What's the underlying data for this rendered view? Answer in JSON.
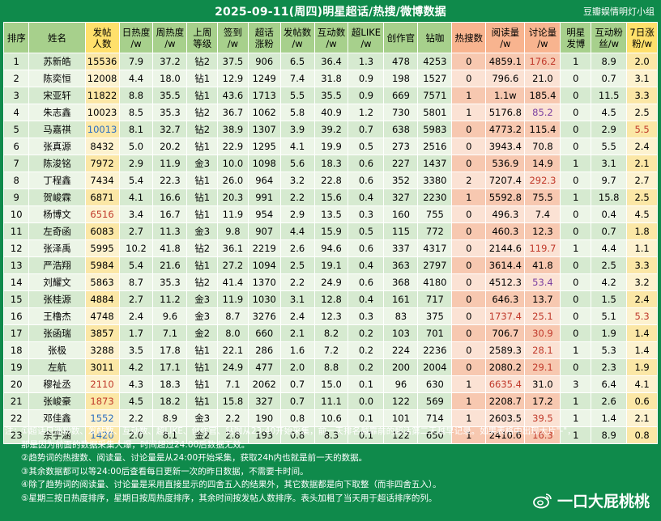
{
  "title": "2025-09-11(周四)明星超话/热搜/微博数据",
  "source": "豆瓣娱情明灯小组",
  "columns": [
    {
      "label1": "排序",
      "label2": "",
      "cls": "h-rank",
      "w": 30
    },
    {
      "label1": "姓名",
      "label2": "",
      "cls": "h-name",
      "w": 66
    },
    {
      "label1": "发帖",
      "label2": "人数",
      "cls": "h-gold",
      "w": 40
    },
    {
      "label1": "日热度",
      "label2": "/w",
      "cls": "h-green",
      "w": 40
    },
    {
      "label1": "周热度",
      "label2": "/w",
      "cls": "h-green",
      "w": 40
    },
    {
      "label1": "上周",
      "label2": "等级",
      "cls": "h-green",
      "w": 36
    },
    {
      "label1": "签到",
      "label2": "/w",
      "cls": "h-green",
      "w": 36
    },
    {
      "label1": "超话",
      "label2": "涨粉",
      "cls": "h-green",
      "w": 38
    },
    {
      "label1": "发帖数",
      "label2": "/w",
      "cls": "h-green",
      "w": 40
    },
    {
      "label1": "互动数",
      "label2": "/w",
      "cls": "h-green",
      "w": 40
    },
    {
      "label1": "超LIKE",
      "label2": "/w",
      "cls": "h-green",
      "w": 42
    },
    {
      "label1": "创作官",
      "label2": "",
      "cls": "h-green",
      "w": 40
    },
    {
      "label1": "钻咖",
      "label2": "",
      "cls": "h-green",
      "w": 40
    },
    {
      "label1": "热搜数",
      "label2": "",
      "cls": "h-peach",
      "w": 40
    },
    {
      "label1": "阅读量",
      "label2": "/w",
      "cls": "h-peach",
      "w": 46
    },
    {
      "label1": "讨论量",
      "label2": "/w",
      "cls": "h-peach",
      "w": 42
    },
    {
      "label1": "明星",
      "label2": "发博",
      "cls": "h-green",
      "w": 36
    },
    {
      "label1": "互动粉",
      "label2": "丝/w",
      "cls": "h-green",
      "w": 42
    },
    {
      "label1": "7日涨",
      "label2": "粉/w",
      "cls": "h-gold2",
      "w": 36
    }
  ],
  "rows": [
    [
      "1",
      "苏新皓",
      "15536",
      "7.9",
      "37.2",
      "钻2",
      "37.5",
      "906",
      "6.5",
      "36.4",
      "1.3",
      "478",
      "4253",
      "0",
      "4859.1",
      "176.2",
      "1",
      "8.9",
      "2.0"
    ],
    [
      "2",
      "陈奕恒",
      "12008",
      "4.4",
      "18.0",
      "钻1",
      "12.9",
      "1249",
      "7.4",
      "31.8",
      "0.9",
      "198",
      "1527",
      "0",
      "796.6",
      "21.0",
      "0",
      "0.7",
      "3.1"
    ],
    [
      "3",
      "宋亚轩",
      "11822",
      "8.8",
      "35.5",
      "钻1",
      "43.6",
      "1713",
      "5.5",
      "35.5",
      "0.9",
      "669",
      "7571",
      "1",
      "1.1w",
      "185.4",
      "0",
      "11.5",
      "3.3"
    ],
    [
      "4",
      "朱志鑫",
      "10023",
      "8.5",
      "35.3",
      "钻2",
      "36.7",
      "1062",
      "5.8",
      "40.9",
      "1.2",
      "730",
      "5801",
      "1",
      "5176.8",
      "85.2",
      "0",
      "4.5",
      "2.5"
    ],
    [
      "5",
      "马嘉祺",
      "10013",
      "8.1",
      "32.7",
      "钻2",
      "38.9",
      "1307",
      "3.9",
      "39.2",
      "0.7",
      "638",
      "5983",
      "0",
      "4773.2",
      "115.4",
      "0",
      "2.9",
      "5.5"
    ],
    [
      "6",
      "张真源",
      "8432",
      "5.0",
      "20.2",
      "钻1",
      "22.9",
      "1295",
      "4.1",
      "19.9",
      "0.5",
      "273",
      "2516",
      "0",
      "3943.4",
      "70.8",
      "0",
      "5.5",
      "2.4"
    ],
    [
      "7",
      "陈浚铭",
      "7972",
      "2.9",
      "11.9",
      "金3",
      "10.0",
      "1098",
      "5.6",
      "18.3",
      "0.6",
      "227",
      "1437",
      "0",
      "536.9",
      "14.9",
      "1",
      "3.1",
      "2.1"
    ],
    [
      "8",
      "丁程鑫",
      "7434",
      "5.4",
      "22.3",
      "钻1",
      "26.0",
      "964",
      "3.2",
      "22.8",
      "0.6",
      "352",
      "3380",
      "2",
      "7207.4",
      "292.3",
      "0",
      "9.7",
      "2.7"
    ],
    [
      "9",
      "贺峻霖",
      "6871",
      "4.1",
      "16.6",
      "钻1",
      "20.3",
      "991",
      "2.2",
      "15.6",
      "0.4",
      "327",
      "2230",
      "1",
      "5592.8",
      "75.5",
      "1",
      "15.8",
      "2.5"
    ],
    [
      "10",
      "杨博文",
      "6516",
      "3.4",
      "16.7",
      "钻1",
      "11.9",
      "954",
      "2.9",
      "13.5",
      "0.3",
      "160",
      "755",
      "0",
      "496.3",
      "7.4",
      "0",
      "0.4",
      "4.5"
    ],
    [
      "11",
      "左奇函",
      "6083",
      "2.7",
      "11.3",
      "金3",
      "9.8",
      "907",
      "4.4",
      "15.9",
      "0.5",
      "115",
      "772",
      "0",
      "460.3",
      "12.3",
      "0",
      "0.7",
      "1.8"
    ],
    [
      "12",
      "张泽禹",
      "5995",
      "10.2",
      "41.8",
      "钻2",
      "36.1",
      "2219",
      "2.6",
      "94.6",
      "0.6",
      "337",
      "4317",
      "0",
      "2144.6",
      "119.7",
      "1",
      "4.4",
      "1.1"
    ],
    [
      "13",
      "严浩翔",
      "5984",
      "5.4",
      "21.6",
      "钻1",
      "27.2",
      "1094",
      "2.5",
      "19.1",
      "0.4",
      "363",
      "2797",
      "0",
      "3614.4",
      "41.8",
      "0",
      "2.5",
      "3.3"
    ],
    [
      "14",
      "刘耀文",
      "5863",
      "8.7",
      "35.3",
      "钻2",
      "41.4",
      "1370",
      "2.2",
      "24.9",
      "0.6",
      "368",
      "4180",
      "0",
      "4512.3",
      "53.4",
      "0",
      "4.2",
      "3.2"
    ],
    [
      "15",
      "张桂源",
      "4884",
      "2.7",
      "11.2",
      "金3",
      "11.9",
      "1030",
      "3.1",
      "12.8",
      "0.4",
      "161",
      "717",
      "0",
      "646.3",
      "13.7",
      "0",
      "1.5",
      "2.4"
    ],
    [
      "16",
      "王橹杰",
      "4748",
      "2.4",
      "9.6",
      "金3",
      "8.7",
      "3276",
      "2.4",
      "12.3",
      "0.3",
      "83",
      "375",
      "0",
      "1737.4",
      "25.1",
      "0",
      "5.1",
      "5.3"
    ],
    [
      "17",
      "张函瑞",
      "3857",
      "1.7",
      "7.1",
      "金2",
      "8.0",
      "660",
      "2.1",
      "8.2",
      "0.2",
      "103",
      "701",
      "0",
      "706.7",
      "30.9",
      "0",
      "1.9",
      "1.4"
    ],
    [
      "18",
      "张极",
      "3288",
      "3.5",
      "17.8",
      "钻1",
      "22.1",
      "286",
      "1.6",
      "7.2",
      "0.2",
      "224",
      "2236",
      "0",
      "2589.3",
      "28.1",
      "1",
      "5.3",
      "1.4"
    ],
    [
      "19",
      "左航",
      "3011",
      "4.2",
      "17.1",
      "钻1",
      "24.9",
      "477",
      "2.0",
      "8.8",
      "0.2",
      "200",
      "2004",
      "0",
      "2080.2",
      "29.1",
      "0",
      "2.3",
      "1.9"
    ],
    [
      "20",
      "穆祉丞",
      "2110",
      "4.3",
      "18.3",
      "钻1",
      "7.1",
      "2062",
      "0.7",
      "15.0",
      "0.1",
      "96",
      "630",
      "1",
      "6635.4",
      "31.0",
      "3",
      "6.4",
      "4.1"
    ],
    [
      "21",
      "张峻豪",
      "1873",
      "4.5",
      "18.2",
      "钻1",
      "15.8",
      "327",
      "0.7",
      "11.1",
      "0.0",
      "122",
      "569",
      "1",
      "2208.7",
      "17.2",
      "1",
      "2.6",
      "0.6"
    ],
    [
      "22",
      "邓佳鑫",
      "1552",
      "2.2",
      "8.9",
      "金3",
      "2.2",
      "190",
      "0.8",
      "10.6",
      "0.1",
      "101",
      "714",
      "1",
      "2603.5",
      "39.5",
      "1",
      "1.4",
      "2.1"
    ],
    [
      "23",
      "余宇涵",
      "1420",
      "2.0",
      "8.1",
      "金2",
      "2.8",
      "193",
      "0.8",
      "8.3",
      "0.1",
      "122",
      "650",
      "1",
      "2410.6",
      "16.3",
      "1",
      "8.9",
      "0.8"
    ]
  ],
  "cell_colors": {
    "blue": [
      [
        4,
        2
      ],
      [
        21,
        2
      ],
      [
        22,
        2
      ]
    ],
    "red": [
      [
        9,
        2
      ],
      [
        19,
        2
      ],
      [
        20,
        2
      ],
      [
        0,
        15
      ],
      [
        7,
        15
      ],
      [
        11,
        15
      ],
      [
        15,
        14
      ],
      [
        15,
        15
      ],
      [
        16,
        15
      ],
      [
        17,
        15
      ],
      [
        18,
        15
      ],
      [
        19,
        14
      ],
      [
        21,
        15
      ],
      [
        22,
        15
      ],
      [
        4,
        18
      ],
      [
        15,
        18
      ]
    ],
    "purple": [
      [
        3,
        15
      ],
      [
        13,
        15
      ]
    ]
  },
  "notes": {
    "lead": "注：",
    "n1a": "①超话日涨粉数、发帖数、互动数、超LIKE、创作官、钻咖从23:40开始采集，前一天排名越靠前的超话第二天越早记录。如果表格中出现大片\"-\"，",
    "n1b": "那是因为前面的数据采集大爆，时间超过24:00后数据无效。",
    "n2": "②趋势词的热搜数、阅读量、讨论量是从24:00开始采集，获取24h内也就是前一天的数据。",
    "n3": "③其余数据都可以等24:00后查看每日更新一次的昨日数据，不需要卡时间。",
    "n4": "④除了趋势词的阅读量、讨论量是采用直接显示的四舍五入的结果外，其它数据都是向下取整（而非四舍五入）。",
    "n5": "⑤星期三按日热度排序，星期日按周热度排序，其余时间按发帖人数排序。表头加粗了当天用于超话排序的列。"
  },
  "watermark": "一口大屁桃桃"
}
